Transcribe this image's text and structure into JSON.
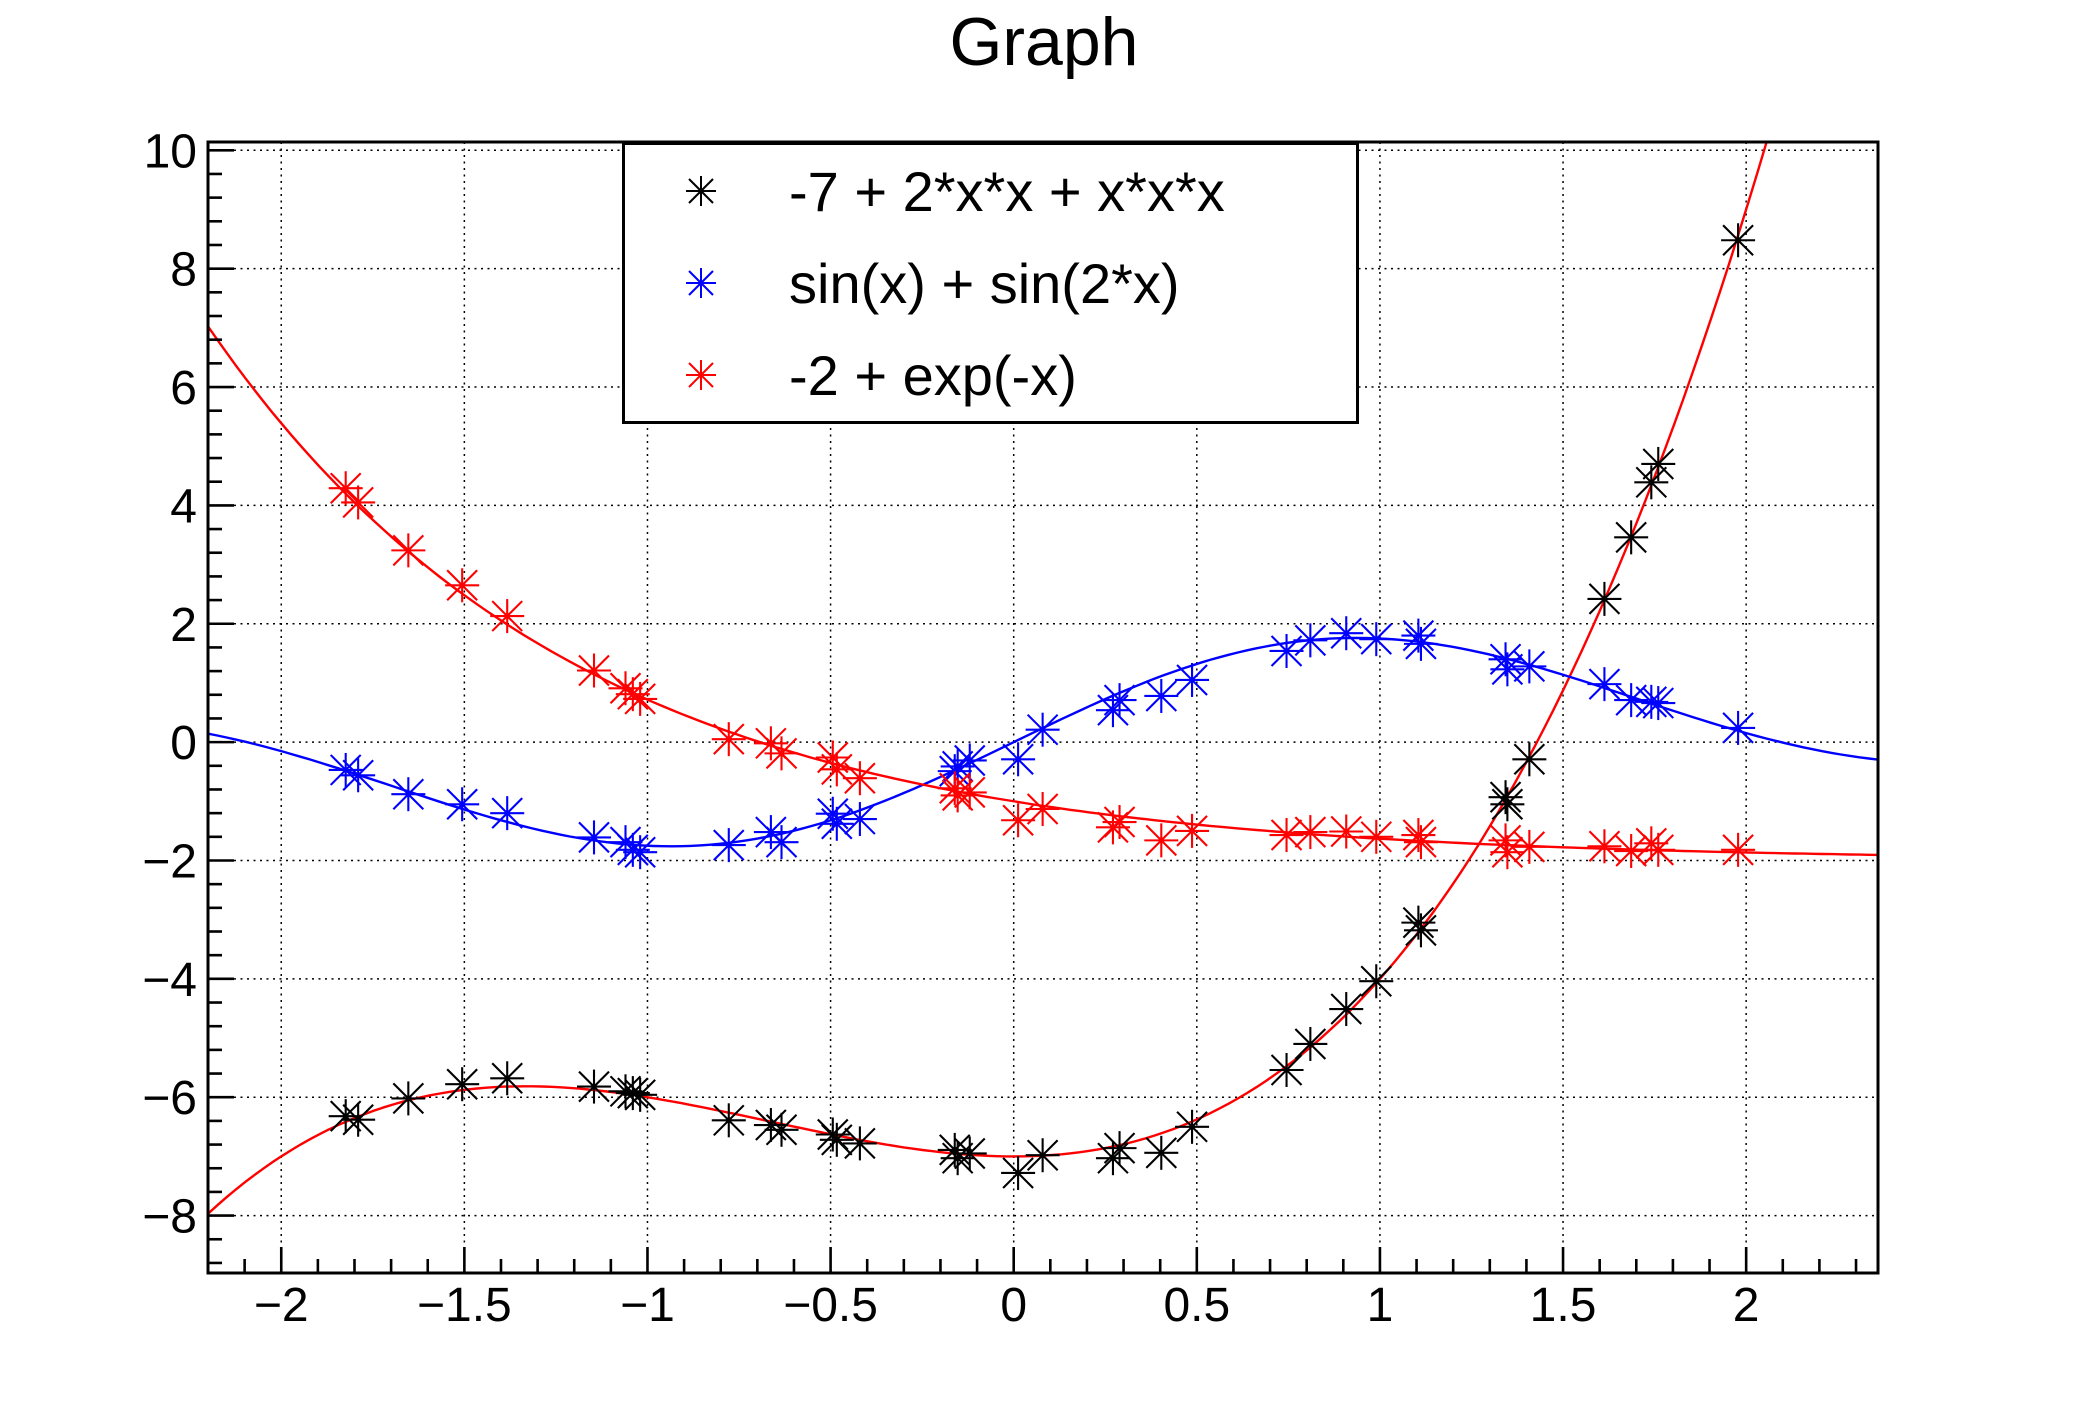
{
  "title": "Graph",
  "colors": {
    "black": "#000000",
    "blue": "#0000ff",
    "red": "#ff0000",
    "grid": "#000000",
    "frame": "#000000",
    "background": "#ffffff"
  },
  "legend": {
    "entries": [
      {
        "label": "-7 + 2*x*x + x*x*x",
        "marker": "asterisk",
        "color": "#000000"
      },
      {
        "label": "sin(x) + sin(2*x)",
        "marker": "asterisk",
        "color": "#0000ff"
      },
      {
        "label": "-2 + exp(-x)",
        "marker": "asterisk",
        "color": "#ff0000"
      }
    ]
  },
  "chart_data": {
    "type": "scatter",
    "title": "Graph",
    "xlabel": "",
    "ylabel": "",
    "xlim": [
      -2.2,
      2.36
    ],
    "ylim": [
      -8.97,
      10.14
    ],
    "grid": true,
    "grid_style": "dotted",
    "legend_position": "top-center",
    "x_ticks": {
      "values": [
        -2,
        -1.5,
        -1,
        -0.5,
        0,
        0.5,
        1,
        1.5,
        2
      ],
      "labels": [
        "−2",
        "−1.5",
        "−1",
        "−0.5",
        "0",
        "0.5",
        "1",
        "1.5",
        "2"
      ],
      "minor_step": 0.1
    },
    "y_ticks": {
      "values": [
        -8,
        -6,
        -4,
        -2,
        0,
        2,
        4,
        6,
        8,
        10
      ],
      "labels": [
        "−8",
        "−6",
        "−4",
        "−2",
        "0",
        "2",
        "4",
        "6",
        "8",
        "10"
      ],
      "minor_step": 0.4
    },
    "shared_x": [
      -1.824,
      -1.79,
      -1.653,
      -1.506,
      -1.383,
      -1.146,
      -1.06,
      -1.04,
      -1.02,
      -0.778,
      -0.663,
      -0.634,
      -0.494,
      -0.483,
      -0.42,
      -0.161,
      -0.153,
      -0.12,
      0.012,
      0.079,
      0.271,
      0.289,
      0.403,
      0.487,
      0.745,
      0.81,
      0.908,
      0.99,
      1.105,
      1.112,
      1.343,
      1.348,
      1.408,
      1.613,
      1.686,
      1.741,
      1.76,
      1.978
    ],
    "series": [
      {
        "name": "-7 + 2*x*x + x*x*x",
        "formula": "-7 + 2*x*x + x*x*x",
        "fn": "cubic",
        "marker": "asterisk",
        "marker_color": "#000000",
        "curve_color": "#ff0000",
        "y": [
          -6.32,
          -6.38,
          -6.02,
          -5.78,
          -5.68,
          -5.82,
          -5.9,
          -5.93,
          -5.96,
          -6.39,
          -6.47,
          -6.55,
          -6.63,
          -6.72,
          -6.78,
          -6.89,
          -7.03,
          -6.95,
          -7.28,
          -6.98,
          -7.03,
          -6.86,
          -6.94,
          -6.5,
          -5.54,
          -5.1,
          -4.51,
          -4.04,
          -3.05,
          -3.18,
          -0.93,
          -1.05,
          -0.29,
          2.42,
          3.46,
          4.39,
          4.7,
          8.48
        ]
      },
      {
        "name": "sin(x) + sin(2*x)",
        "formula": "sin(x) + sin(2*x)",
        "fn": "sinsum",
        "marker": "asterisk",
        "marker_color": "#0000ff",
        "curve_color": "#0000ff",
        "y": [
          -0.47,
          -0.56,
          -0.88,
          -1.05,
          -1.2,
          -1.61,
          -1.69,
          -1.82,
          -1.86,
          -1.74,
          -1.52,
          -1.69,
          -1.21,
          -1.38,
          -1.3,
          -0.49,
          -0.41,
          -0.31,
          -0.29,
          0.21,
          0.54,
          0.71,
          0.78,
          1.05,
          1.54,
          1.72,
          1.84,
          1.74,
          1.8,
          1.66,
          1.4,
          1.23,
          1.28,
          0.98,
          0.71,
          0.68,
          0.66,
          0.24
        ]
      },
      {
        "name": "-2 + exp(-x)",
        "formula": "-2 + exp(-x)",
        "fn": "expdec",
        "marker": "asterisk",
        "marker_color": "#ff0000",
        "curve_color": "#ff0000",
        "y": [
          4.29,
          4.05,
          3.24,
          2.65,
          2.13,
          1.21,
          0.91,
          0.81,
          0.73,
          0.05,
          -0.02,
          -0.19,
          -0.26,
          -0.46,
          -0.61,
          -0.78,
          -0.9,
          -0.85,
          -1.32,
          -1.13,
          -1.44,
          -1.35,
          -1.66,
          -1.5,
          -1.57,
          -1.52,
          -1.51,
          -1.6,
          -1.57,
          -1.69,
          -1.66,
          -1.86,
          -1.77,
          -1.76,
          -1.84,
          -1.71,
          -1.82,
          -1.82
        ]
      }
    ]
  }
}
